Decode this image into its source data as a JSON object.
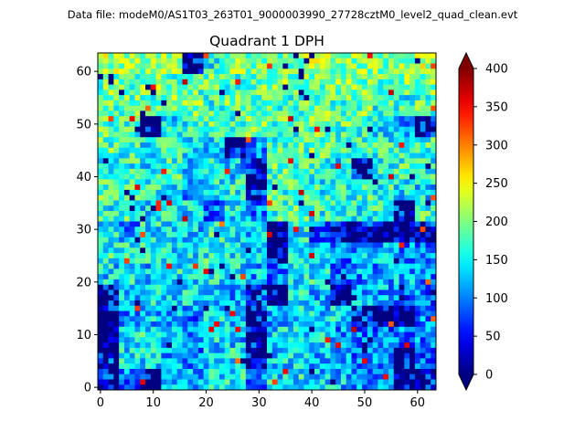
{
  "chart_data": {
    "type": "heatmap",
    "suptitle": "Data file: modeM0/AS1T03_263T01_9000003990_27728cztM0_level2_quad_clean.evt",
    "title": "Quadrant 1 DPH",
    "xlabel": "",
    "ylabel": "",
    "xlim": [
      -0.5,
      63.5
    ],
    "ylim": [
      -0.5,
      63.5
    ],
    "grid_size": [
      64,
      64
    ],
    "x_ticks": [
      "0",
      "10",
      "20",
      "30",
      "40",
      "50",
      "60"
    ],
    "y_ticks": [
      "0",
      "10",
      "20",
      "30",
      "40",
      "50",
      "60"
    ],
    "colormap": "jet",
    "colorbar": {
      "vmin": 0,
      "vmax": 400,
      "extend": "both",
      "ticks": [
        "0",
        "50",
        "100",
        "150",
        "200",
        "250",
        "300",
        "350",
        "400"
      ]
    },
    "coarse_block_size": 4,
    "coarse_rows_top_to_bottom": [
      [
        210,
        200,
        190,
        200,
        60,
        160,
        210,
        200,
        190,
        200,
        210,
        190,
        200,
        200,
        210,
        220
      ],
      [
        190,
        180,
        200,
        180,
        180,
        190,
        180,
        190,
        200,
        190,
        180,
        200,
        190,
        180,
        200,
        200
      ],
      [
        180,
        190,
        180,
        200,
        190,
        170,
        190,
        180,
        170,
        180,
        190,
        180,
        190,
        170,
        160,
        180
      ],
      [
        180,
        170,
        60,
        140,
        160,
        180,
        170,
        190,
        180,
        170,
        190,
        180,
        170,
        150,
        120,
        60
      ],
      [
        180,
        170,
        150,
        160,
        150,
        140,
        60,
        100,
        170,
        180,
        190,
        170,
        170,
        160,
        170,
        170
      ],
      [
        170,
        160,
        150,
        170,
        140,
        150,
        130,
        70,
        180,
        180,
        170,
        150,
        60,
        160,
        170,
        160
      ],
      [
        180,
        170,
        160,
        150,
        100,
        150,
        160,
        80,
        170,
        170,
        160,
        160,
        170,
        160,
        140,
        140
      ],
      [
        160,
        170,
        140,
        150,
        140,
        90,
        150,
        100,
        170,
        180,
        160,
        150,
        160,
        170,
        70,
        170
      ],
      [
        150,
        110,
        150,
        140,
        130,
        160,
        140,
        130,
        40,
        150,
        90,
        70,
        70,
        60,
        50,
        80
      ],
      [
        160,
        150,
        150,
        140,
        150,
        160,
        140,
        130,
        50,
        140,
        140,
        100,
        120,
        120,
        110,
        90
      ],
      [
        140,
        150,
        130,
        150,
        130,
        150,
        140,
        120,
        100,
        150,
        150,
        90,
        110,
        110,
        120,
        110
      ],
      [
        80,
        140,
        140,
        130,
        140,
        130,
        120,
        80,
        50,
        140,
        130,
        50,
        120,
        120,
        90,
        90
      ],
      [
        60,
        110,
        130,
        120,
        100,
        140,
        130,
        60,
        120,
        140,
        130,
        140,
        80,
        60,
        70,
        110
      ],
      [
        80,
        140,
        150,
        130,
        100,
        140,
        130,
        60,
        140,
        140,
        140,
        110,
        90,
        90,
        100,
        100
      ],
      [
        80,
        150,
        140,
        120,
        100,
        130,
        150,
        60,
        140,
        140,
        130,
        130,
        100,
        100,
        60,
        90
      ],
      [
        70,
        100,
        80,
        110,
        120,
        150,
        150,
        100,
        140,
        150,
        130,
        130,
        100,
        110,
        60,
        80
      ]
    ]
  }
}
